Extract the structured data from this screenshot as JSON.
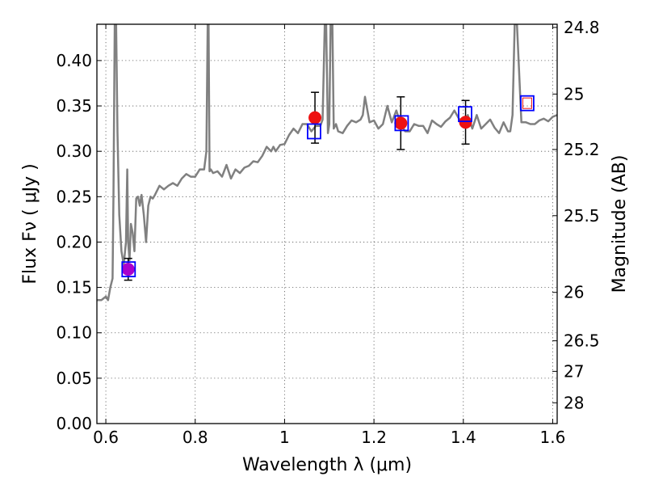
{
  "chart_data": {
    "type": "scatter",
    "title": "",
    "xlabel": "Wavelength  λ (μm)",
    "ylabel": "Flux  Fν  ( μJy )",
    "ylabel_right": "Magnitude (AB)",
    "xlim": [
      0.58,
      1.61
    ],
    "ylim": [
      0.0,
      0.44
    ],
    "grid": true,
    "x_ticks": [
      {
        "value": 0.6,
        "label": "0.6"
      },
      {
        "value": 0.8,
        "label": "0.8"
      },
      {
        "value": 1.0,
        "label": "1"
      },
      {
        "value": 1.2,
        "label": "1.2"
      },
      {
        "value": 1.4,
        "label": "1.4"
      },
      {
        "value": 1.6,
        "label": "1.6"
      }
    ],
    "y_ticks": [
      {
        "value": 0.0,
        "label": "0.00"
      },
      {
        "value": 0.05,
        "label": "0.05"
      },
      {
        "value": 0.1,
        "label": "0.10"
      },
      {
        "value": 0.15,
        "label": "0.15"
      },
      {
        "value": 0.2,
        "label": "0.20"
      },
      {
        "value": 0.25,
        "label": "0.25"
      },
      {
        "value": 0.3,
        "label": "0.30"
      },
      {
        "value": 0.35,
        "label": "0.35"
      },
      {
        "value": 0.4,
        "label": "0.40"
      }
    ],
    "right_ticks": [
      {
        "mag": 24.8,
        "label": "24.8"
      },
      {
        "mag": 25.0,
        "label": "25"
      },
      {
        "mag": 25.2,
        "label": "25.2"
      },
      {
        "mag": 25.5,
        "label": "25.5"
      },
      {
        "mag": 26.0,
        "label": "26"
      },
      {
        "mag": 26.5,
        "label": "26.5"
      },
      {
        "mag": 27.0,
        "label": "27"
      },
      {
        "mag": 28.0,
        "label": "28"
      }
    ],
    "series": [
      {
        "type": "line",
        "color": "#808080",
        "x": [
          0.58,
          0.59,
          0.6,
          0.605,
          0.61,
          0.615,
          0.617,
          0.62,
          0.623,
          0.626,
          0.63,
          0.635,
          0.64,
          0.645,
          0.648,
          0.65,
          0.653,
          0.656,
          0.66,
          0.664,
          0.668,
          0.672,
          0.676,
          0.68,
          0.685,
          0.69,
          0.695,
          0.7,
          0.705,
          0.71,
          0.72,
          0.73,
          0.74,
          0.75,
          0.76,
          0.77,
          0.78,
          0.79,
          0.8,
          0.81,
          0.82,
          0.825,
          0.828,
          0.83,
          0.832,
          0.835,
          0.84,
          0.85,
          0.86,
          0.87,
          0.88,
          0.89,
          0.9,
          0.91,
          0.92,
          0.93,
          0.94,
          0.95,
          0.96,
          0.97,
          0.975,
          0.98,
          0.99,
          1.0,
          1.01,
          1.02,
          1.03,
          1.04,
          1.05,
          1.06,
          1.07,
          1.08,
          1.085,
          1.09,
          1.093,
          1.097,
          1.1,
          1.103,
          1.107,
          1.11,
          1.115,
          1.12,
          1.13,
          1.14,
          1.15,
          1.16,
          1.17,
          1.175,
          1.18,
          1.19,
          1.2,
          1.21,
          1.22,
          1.23,
          1.24,
          1.25,
          1.26,
          1.27,
          1.28,
          1.29,
          1.3,
          1.31,
          1.32,
          1.33,
          1.34,
          1.35,
          1.36,
          1.37,
          1.38,
          1.39,
          1.4,
          1.41,
          1.42,
          1.43,
          1.44,
          1.45,
          1.46,
          1.47,
          1.48,
          1.49,
          1.5,
          1.505,
          1.51,
          1.515,
          1.52,
          1.53,
          1.54,
          1.55,
          1.56,
          1.57,
          1.58,
          1.59,
          1.6,
          1.61
        ],
        "y": [
          0.136,
          0.136,
          0.14,
          0.136,
          0.15,
          0.16,
          0.25,
          0.44,
          0.44,
          0.32,
          0.23,
          0.19,
          0.175,
          0.2,
          0.28,
          0.2,
          0.18,
          0.22,
          0.21,
          0.19,
          0.248,
          0.25,
          0.24,
          0.252,
          0.23,
          0.2,
          0.24,
          0.25,
          0.248,
          0.252,
          0.262,
          0.258,
          0.262,
          0.265,
          0.262,
          0.27,
          0.275,
          0.272,
          0.272,
          0.28,
          0.28,
          0.3,
          0.44,
          0.44,
          0.278,
          0.28,
          0.276,
          0.278,
          0.272,
          0.285,
          0.27,
          0.28,
          0.276,
          0.282,
          0.284,
          0.289,
          0.288,
          0.295,
          0.305,
          0.3,
          0.305,
          0.3,
          0.307,
          0.308,
          0.318,
          0.325,
          0.32,
          0.33,
          0.33,
          0.322,
          0.328,
          0.328,
          0.335,
          0.44,
          0.44,
          0.32,
          0.33,
          0.44,
          0.44,
          0.325,
          0.33,
          0.322,
          0.32,
          0.328,
          0.334,
          0.332,
          0.335,
          0.34,
          0.36,
          0.332,
          0.334,
          0.325,
          0.33,
          0.35,
          0.332,
          0.345,
          0.33,
          0.322,
          0.322,
          0.33,
          0.328,
          0.328,
          0.32,
          0.334,
          0.33,
          0.327,
          0.333,
          0.337,
          0.345,
          0.336,
          0.33,
          0.34,
          0.325,
          0.34,
          0.325,
          0.33,
          0.335,
          0.326,
          0.32,
          0.332,
          0.322,
          0.322,
          0.34,
          0.44,
          0.44,
          0.332,
          0.332,
          0.33,
          0.33,
          0.334,
          0.336,
          0.333,
          0.338,
          0.34
        ]
      },
      {
        "type": "points",
        "name": "",
        "x": [
          0.65,
          1.068,
          1.26,
          1.405
        ],
        "y": [
          0.17,
          0.337,
          0.331,
          0.332
        ],
        "yerr": [
          0.012,
          0.028,
          0.029,
          0.024
        ],
        "colors": [
          "#aa00cc",
          "#ee1111",
          "#ee1111",
          "#ee1111"
        ]
      },
      {
        "type": "squares",
        "name": "",
        "x": [
          0.651,
          1.066,
          1.262,
          1.404,
          1.543
        ],
        "y": [
          0.17,
          0.322,
          0.331,
          0.341,
          0.353
        ],
        "colors": [
          "#0000ff",
          "#0000ff",
          "#0000ff",
          "#0000ff",
          "#0000ff"
        ],
        "inner_colors": [
          "",
          "",
          "",
          "",
          "#ee1111"
        ]
      }
    ]
  }
}
